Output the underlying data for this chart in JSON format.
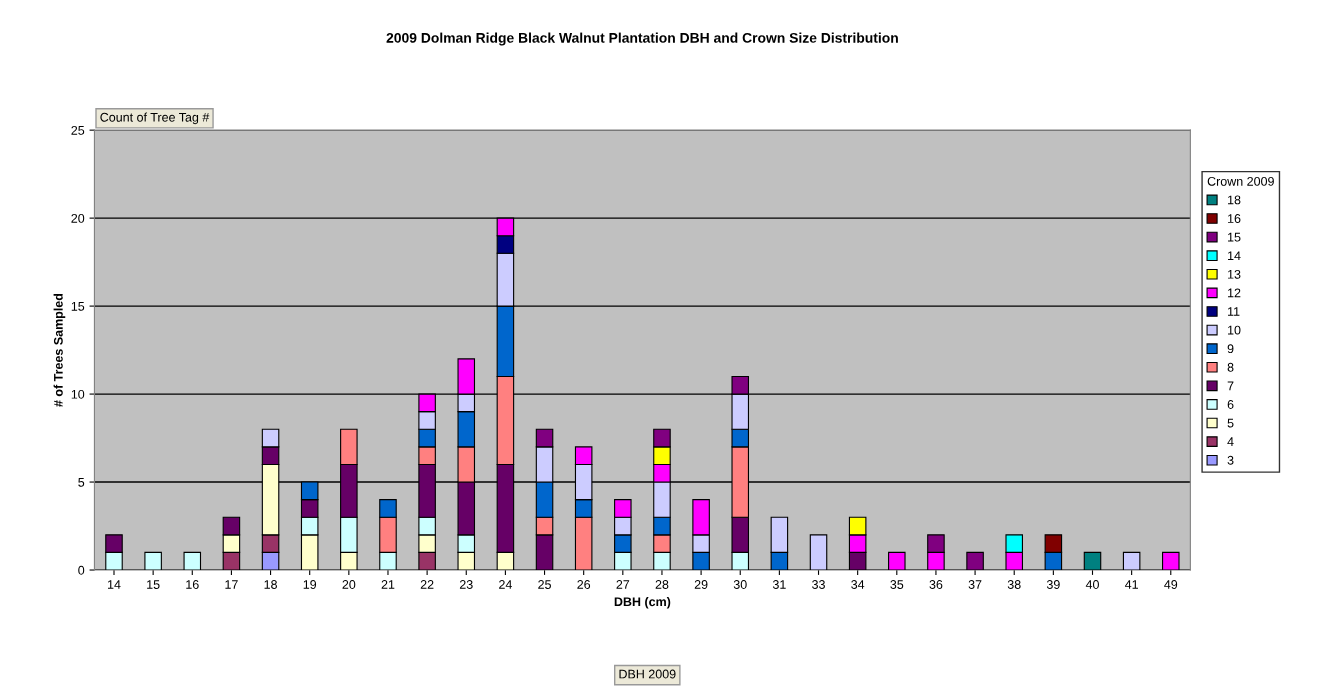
{
  "chart_data": {
    "type": "bar",
    "stacked": true,
    "title": "2009 Dolman Ridge Black Walnut Plantation DBH and Crown Size Distribution",
    "xlabel": "DBH (cm)",
    "ylabel": "# of Trees Sampled",
    "legend_title": "Crown 2009",
    "annotations": [
      "Count of Tree Tag #",
      "DBH 2009"
    ],
    "categories": [
      "14",
      "15",
      "16",
      "17",
      "18",
      "19",
      "20",
      "21",
      "22",
      "23",
      "24",
      "25",
      "26",
      "27",
      "28",
      "29",
      "30",
      "31",
      "33",
      "34",
      "35",
      "36",
      "37",
      "38",
      "39",
      "40",
      "41",
      "49"
    ],
    "ylim": [
      0,
      25
    ],
    "yticks": [
      0,
      5,
      10,
      15,
      20,
      25
    ],
    "grid": "y",
    "legend": "right",
    "series": [
      {
        "name": "3",
        "color": "#9999ff",
        "values": [
          null,
          null,
          null,
          null,
          1,
          null,
          null,
          null,
          null,
          null,
          null,
          null,
          null,
          null,
          null,
          null,
          null,
          null,
          null,
          null,
          null,
          null,
          null,
          null,
          null,
          null,
          null,
          null
        ]
      },
      {
        "name": "4",
        "color": "#993366",
        "values": [
          null,
          null,
          null,
          1,
          1,
          null,
          null,
          null,
          1,
          null,
          null,
          null,
          null,
          null,
          null,
          null,
          null,
          null,
          null,
          null,
          null,
          null,
          null,
          null,
          null,
          null,
          null,
          null
        ]
      },
      {
        "name": "5",
        "color": "#ffffcc",
        "values": [
          null,
          null,
          null,
          1,
          4,
          2,
          1,
          null,
          1,
          1,
          1,
          null,
          null,
          null,
          null,
          null,
          null,
          null,
          null,
          null,
          null,
          null,
          null,
          null,
          null,
          null,
          null,
          null
        ]
      },
      {
        "name": "6",
        "color": "#ccffff",
        "values": [
          1,
          1,
          1,
          null,
          null,
          1,
          2,
          1,
          1,
          1,
          null,
          null,
          null,
          1,
          1,
          null,
          1,
          null,
          null,
          null,
          null,
          null,
          null,
          null,
          null,
          null,
          null,
          null
        ]
      },
      {
        "name": "7",
        "color": "#660066",
        "values": [
          1,
          null,
          null,
          1,
          1,
          1,
          3,
          null,
          3,
          3,
          5,
          2,
          null,
          null,
          null,
          null,
          2,
          null,
          null,
          1,
          null,
          null,
          null,
          null,
          null,
          null,
          null,
          null
        ]
      },
      {
        "name": "8",
        "color": "#ff8080",
        "values": [
          null,
          null,
          null,
          null,
          null,
          null,
          2,
          2,
          1,
          2,
          5,
          1,
          3,
          null,
          1,
          null,
          4,
          null,
          null,
          null,
          null,
          null,
          null,
          null,
          null,
          null,
          null,
          null
        ]
      },
      {
        "name": "9",
        "color": "#0066cc",
        "values": [
          null,
          null,
          null,
          null,
          null,
          1,
          null,
          1,
          1,
          2,
          4,
          2,
          1,
          1,
          1,
          1,
          1,
          1,
          null,
          null,
          null,
          null,
          null,
          null,
          1,
          null,
          null,
          null
        ]
      },
      {
        "name": "10",
        "color": "#ccccff",
        "values": [
          null,
          null,
          null,
          null,
          1,
          null,
          null,
          null,
          1,
          1,
          3,
          2,
          2,
          1,
          2,
          1,
          2,
          2,
          2,
          null,
          null,
          null,
          null,
          null,
          null,
          null,
          1,
          null
        ]
      },
      {
        "name": "11",
        "color": "#000080",
        "values": [
          null,
          null,
          null,
          null,
          null,
          null,
          null,
          null,
          null,
          null,
          1,
          null,
          null,
          null,
          null,
          null,
          null,
          null,
          null,
          null,
          null,
          null,
          null,
          null,
          null,
          null,
          null,
          null
        ]
      },
      {
        "name": "12",
        "color": "#ff00ff",
        "values": [
          null,
          null,
          null,
          null,
          null,
          null,
          null,
          null,
          1,
          2,
          1,
          null,
          1,
          1,
          1,
          2,
          null,
          null,
          null,
          1,
          1,
          1,
          null,
          1,
          null,
          null,
          null,
          1
        ]
      },
      {
        "name": "13",
        "color": "#ffff00",
        "values": [
          null,
          null,
          null,
          null,
          null,
          null,
          null,
          null,
          null,
          null,
          null,
          null,
          null,
          null,
          1,
          null,
          null,
          null,
          null,
          1,
          null,
          null,
          null,
          null,
          null,
          null,
          null,
          null
        ]
      },
      {
        "name": "14",
        "color": "#00ffff",
        "values": [
          null,
          null,
          null,
          null,
          null,
          null,
          null,
          null,
          null,
          null,
          null,
          null,
          null,
          null,
          null,
          null,
          null,
          null,
          null,
          null,
          null,
          null,
          null,
          1,
          null,
          null,
          null,
          null
        ]
      },
      {
        "name": "15",
        "color": "#800080",
        "values": [
          null,
          null,
          null,
          null,
          null,
          null,
          null,
          null,
          null,
          null,
          null,
          1,
          null,
          null,
          1,
          null,
          1,
          null,
          null,
          null,
          null,
          1,
          1,
          null,
          null,
          null,
          null,
          null
        ]
      },
      {
        "name": "16",
        "color": "#800000",
        "values": [
          null,
          null,
          null,
          null,
          null,
          null,
          null,
          null,
          null,
          null,
          null,
          null,
          null,
          null,
          null,
          null,
          null,
          null,
          null,
          null,
          null,
          null,
          null,
          null,
          1,
          null,
          null,
          null
        ]
      },
      {
        "name": "18",
        "color": "#008080",
        "values": [
          null,
          null,
          null,
          null,
          null,
          null,
          null,
          null,
          null,
          null,
          null,
          null,
          null,
          null,
          null,
          null,
          null,
          null,
          null,
          null,
          null,
          null,
          null,
          null,
          null,
          1,
          null,
          null
        ]
      }
    ]
  }
}
